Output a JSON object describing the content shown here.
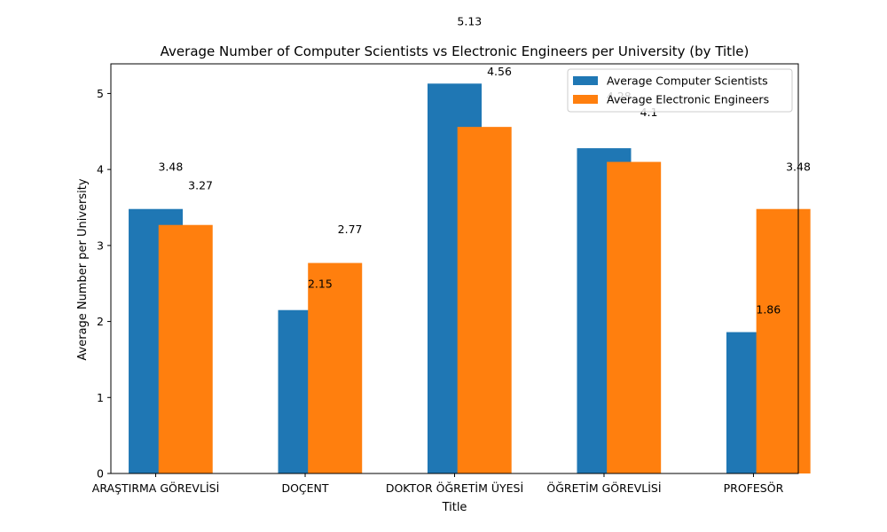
{
  "chart_data": {
    "type": "bar",
    "title": "Average Number of Computer Scientists vs Electronic Engineers per University (by Title)",
    "xlabel": "Title",
    "ylabel": "Average Number per University",
    "categories": [
      "ARAŞTIRMA GÖREVLİSİ",
      "DOÇENT",
      "DOKTOR ÖĞRETİM ÜYESİ",
      "ÖĞRETİM GÖREVLİSİ",
      "PROFESÖR"
    ],
    "series": [
      {
        "name": "Average Computer Scientists",
        "color": "#1f77b4",
        "values": [
          3.48,
          2.15,
          5.13,
          4.28,
          1.86
        ]
      },
      {
        "name": "Average Electronic Engineers",
        "color": "#ff7f0e",
        "values": [
          3.27,
          2.77,
          4.56,
          4.1,
          3.48
        ]
      }
    ],
    "data_labels": [
      [
        "3.48",
        "2.15",
        "5.13",
        "4.28",
        "1.86"
      ],
      [
        "3.27",
        "2.77",
        "4.56",
        "4.1",
        "3.48"
      ]
    ],
    "yticks": [
      0,
      1,
      2,
      3,
      4,
      5
    ],
    "ylim": [
      0,
      5.39
    ],
    "grid": false,
    "legend_position": "top-right"
  }
}
